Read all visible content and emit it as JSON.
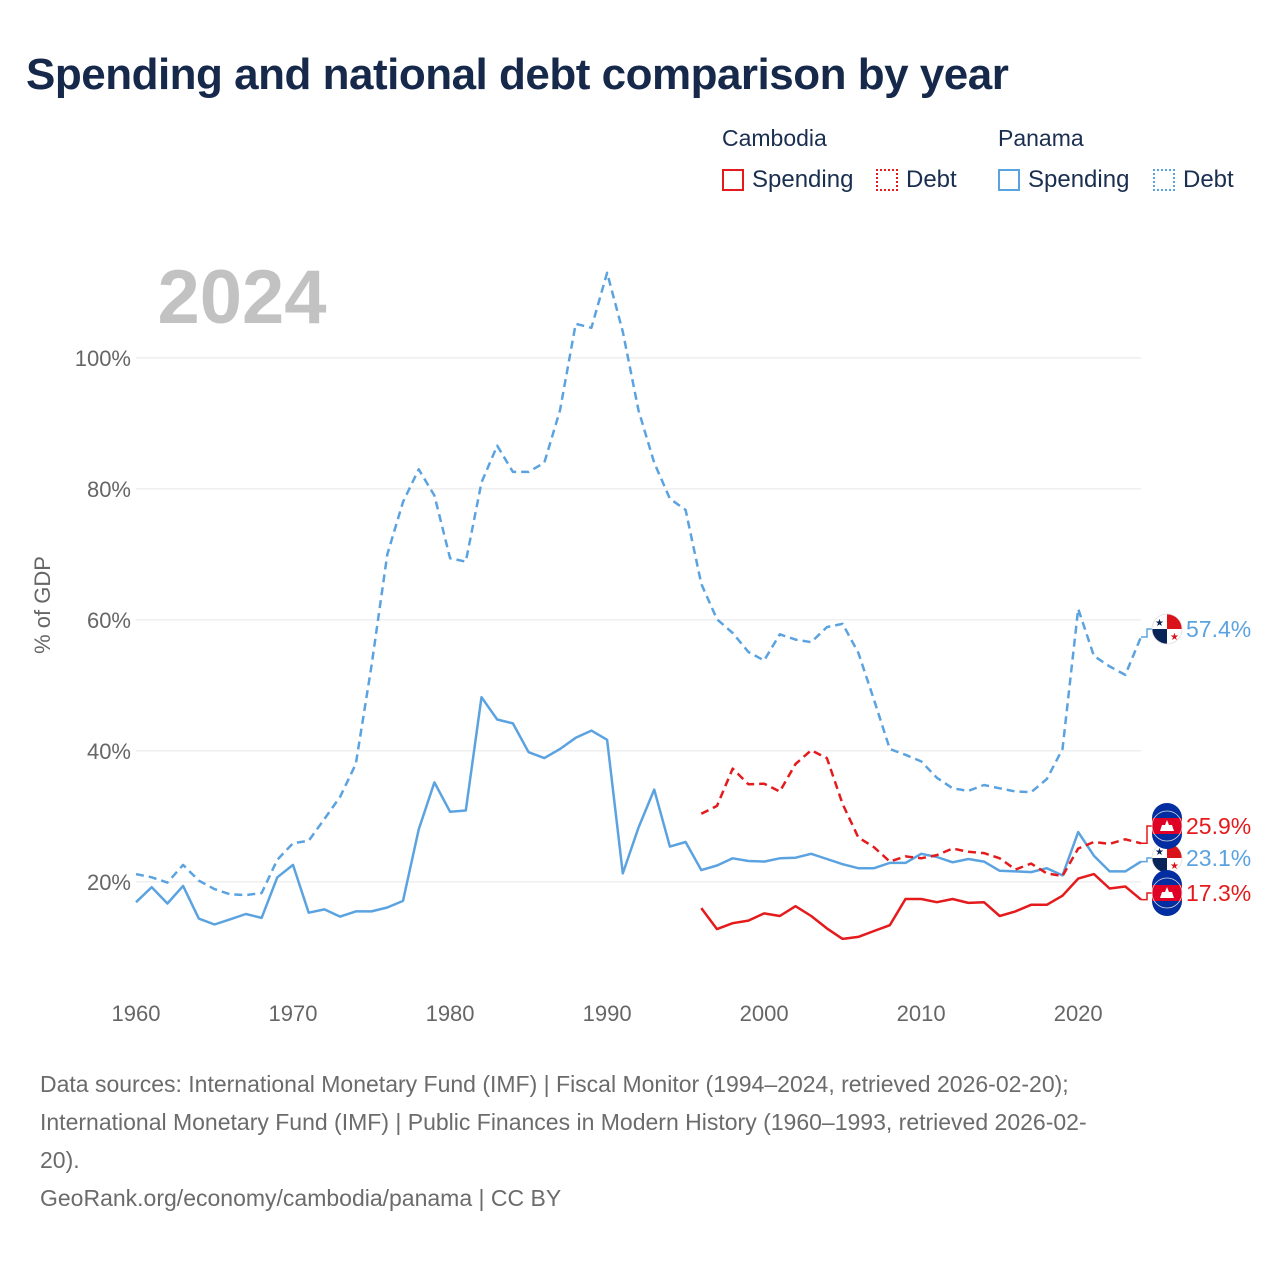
{
  "title": "Spending and national debt comparison by year",
  "year_label": "2024",
  "legend": {
    "cambodia": {
      "label": "Cambodia",
      "spending": "Spending",
      "debt": "Debt"
    },
    "panama": {
      "label": "Panama",
      "spending": "Spending",
      "debt": "Debt"
    }
  },
  "colors": {
    "cambodia": "#e41a1c",
    "panama": "#5ba3e0",
    "grid": "#e6e6e6",
    "axis_text": "#666666",
    "year": "#c2c2c2"
  },
  "chart_data": {
    "type": "line",
    "title": "Spending and national debt comparison by year",
    "xlabel": "",
    "ylabel": "% of GDP",
    "xlim": [
      1960,
      2024
    ],
    "ylim": [
      3.5,
      118
    ],
    "x_ticks": [
      1960,
      1970,
      1980,
      1990,
      2000,
      2010,
      2020
    ],
    "y_ticks": [
      20,
      40,
      60,
      80,
      100
    ],
    "y_tick_labels": [
      "20%",
      "40%",
      "60%",
      "80%",
      "100%"
    ],
    "series": [
      {
        "name": "Panama Debt",
        "country": "panama",
        "style": "dashed",
        "end_label": "57.4%",
        "x": [
          1960,
          1961,
          1962,
          1963,
          1964,
          1965,
          1966,
          1967,
          1968,
          1969,
          1970,
          1971,
          1972,
          1973,
          1974,
          1975,
          1976,
          1977,
          1978,
          1979,
          1980,
          1981,
          1982,
          1983,
          1984,
          1985,
          1986,
          1987,
          1988,
          1989,
          1990,
          1991,
          1992,
          1993,
          1994,
          1995,
          1996,
          1997,
          1998,
          1999,
          2000,
          2001,
          2002,
          2003,
          2004,
          2005,
          2006,
          2007,
          2008,
          2009,
          2010,
          2011,
          2012,
          2013,
          2014,
          2015,
          2016,
          2017,
          2018,
          2019,
          2020,
          2021,
          2022,
          2023,
          2024
        ],
        "values": [
          21.2,
          20.7,
          19.9,
          22.6,
          20.2,
          18.9,
          18.1,
          18.0,
          18.3,
          23.4,
          25.9,
          26.3,
          29.6,
          33.0,
          38.0,
          53.0,
          70.0,
          78.0,
          83.0,
          79.0,
          69.4,
          68.9,
          81.0,
          86.6,
          82.6,
          82.6,
          84.0,
          92.0,
          105.2,
          104.6,
          113.0,
          104.0,
          92.0,
          84.0,
          78.5,
          76.8,
          65.5,
          60.1,
          58.0,
          55.1,
          53.8,
          57.8,
          57.0,
          56.6,
          58.9,
          59.4,
          55.0,
          47.8,
          40.3,
          39.4,
          38.4,
          35.9,
          34.3,
          33.9,
          34.8,
          34.3,
          33.8,
          33.7,
          35.7,
          40.3,
          61.7,
          54.5,
          52.9,
          51.6,
          57.4
        ]
      },
      {
        "name": "Panama Spending",
        "country": "panama",
        "style": "solid",
        "end_label": "23.1%",
        "x": [
          1960,
          1961,
          1962,
          1963,
          1964,
          1965,
          1966,
          1967,
          1968,
          1969,
          1970,
          1971,
          1972,
          1973,
          1974,
          1975,
          1976,
          1977,
          1978,
          1979,
          1980,
          1981,
          1982,
          1983,
          1984,
          1985,
          1986,
          1987,
          1988,
          1989,
          1990,
          1991,
          1992,
          1993,
          1994,
          1995,
          1996,
          1997,
          1998,
          1999,
          2000,
          2001,
          2002,
          2003,
          2004,
          2005,
          2006,
          2007,
          2008,
          2009,
          2010,
          2011,
          2012,
          2013,
          2014,
          2015,
          2016,
          2017,
          2018,
          2019,
          2020,
          2021,
          2022,
          2023,
          2024
        ],
        "values": [
          16.9,
          19.2,
          16.7,
          19.4,
          14.4,
          13.5,
          14.3,
          15.1,
          14.5,
          20.7,
          22.6,
          15.3,
          15.8,
          14.7,
          15.5,
          15.5,
          16.1,
          17.1,
          28.0,
          35.2,
          30.7,
          30.9,
          48.2,
          44.8,
          44.2,
          39.8,
          38.9,
          40.3,
          42.0,
          43.1,
          41.7,
          21.3,
          28.3,
          34.1,
          25.4,
          26.1,
          21.8,
          22.5,
          23.6,
          23.2,
          23.1,
          23.6,
          23.7,
          24.3,
          23.5,
          22.7,
          22.1,
          22.1,
          22.9,
          22.9,
          24.3,
          23.8,
          23.0,
          23.5,
          23.1,
          21.7,
          21.6,
          21.5,
          22.1,
          21.0,
          27.6,
          24.0,
          21.6,
          21.6,
          23.1
        ]
      },
      {
        "name": "Cambodia Debt",
        "country": "cambodia",
        "style": "dashed",
        "end_label": "25.9%",
        "x": [
          1996,
          1997,
          1998,
          1999,
          2000,
          2001,
          2002,
          2003,
          2004,
          2005,
          2006,
          2007,
          2008,
          2009,
          2010,
          2011,
          2012,
          2013,
          2014,
          2015,
          2016,
          2017,
          2018,
          2019,
          2020,
          2021,
          2022,
          2023,
          2024
        ],
        "values": [
          30.4,
          31.6,
          37.3,
          34.9,
          35.0,
          33.8,
          38.0,
          40.1,
          38.9,
          31.9,
          26.8,
          25.3,
          23.1,
          23.9,
          23.6,
          24.1,
          25.1,
          24.6,
          24.4,
          23.6,
          21.9,
          22.8,
          21.3,
          20.9,
          25.1,
          26.1,
          25.8,
          26.5,
          25.9
        ]
      },
      {
        "name": "Cambodia Spending",
        "country": "cambodia",
        "style": "solid",
        "end_label": "17.3%",
        "x": [
          1996,
          1997,
          1998,
          1999,
          2000,
          2001,
          2002,
          2003,
          2004,
          2005,
          2006,
          2007,
          2008,
          2009,
          2010,
          2011,
          2012,
          2013,
          2014,
          2015,
          2016,
          2017,
          2018,
          2019,
          2020,
          2021,
          2022,
          2023,
          2024
        ],
        "values": [
          16.0,
          12.8,
          13.7,
          14.1,
          15.2,
          14.8,
          16.3,
          14.8,
          12.9,
          11.3,
          11.6,
          12.5,
          13.4,
          17.4,
          17.4,
          16.9,
          17.4,
          16.8,
          16.9,
          14.8,
          15.5,
          16.5,
          16.5,
          17.9,
          20.5,
          21.2,
          19.0,
          19.3,
          17.3
        ]
      }
    ]
  },
  "footer": {
    "line1": "Data sources: International Monetary Fund (IMF) | Fiscal Monitor (1994–2024, retrieved 2026-02-20);",
    "line2": "International Monetary Fund (IMF) | Public Finances in Modern History (1960–1993, retrieved 2026-02-",
    "line3": "20).",
    "line4": "GeoRank.org/economy/cambodia/panama | CC BY"
  }
}
